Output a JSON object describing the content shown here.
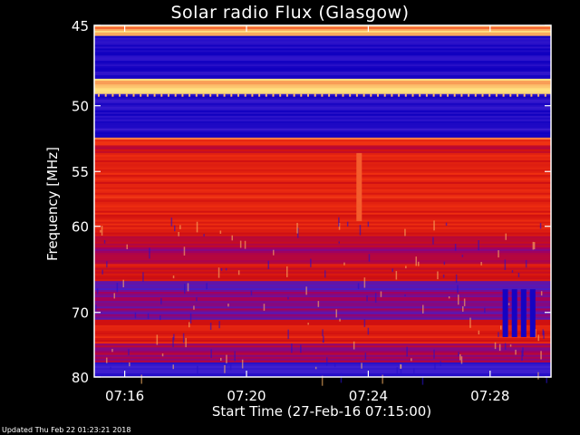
{
  "chart_data": {
    "type": "heatmap",
    "title": "Solar radio Flux (Glasgow)",
    "ylabel": "Frequency [MHz]",
    "xlabel": "Start Time (27-Feb-16 07:15:00)",
    "y_ticks": [
      45,
      50,
      55,
      60,
      70,
      80
    ],
    "ylim": [
      45,
      80
    ],
    "x_ticks": [
      "07:16",
      "07:20",
      "07:24",
      "07:28"
    ],
    "x_tick_minutes": [
      16,
      20,
      24,
      28
    ],
    "xlim_minutes": [
      15,
      30
    ],
    "colormap": [
      "#1000c0",
      "#4020d0",
      "#a00060",
      "#d01010",
      "#f03010",
      "#ffe080"
    ],
    "bands": [
      {
        "from": 45,
        "to": 45.6,
        "level": 0.9
      },
      {
        "from": 45.6,
        "to": 48.2,
        "level": 0.05
      },
      {
        "from": 48.2,
        "to": 49.2,
        "level": 1.0
      },
      {
        "from": 49.2,
        "to": 52.3,
        "level": 0.08
      },
      {
        "from": 52.3,
        "to": 52.9,
        "level": 0.85
      },
      {
        "from": 52.9,
        "to": 53.5,
        "level": 0.55
      },
      {
        "from": 53.5,
        "to": 61.0,
        "level": 0.7
      },
      {
        "from": 61.0,
        "to": 64.0,
        "level": 0.45
      },
      {
        "from": 64.0,
        "to": 66.0,
        "level": 0.62
      },
      {
        "from": 66.0,
        "to": 68.0,
        "level": 0.3
      },
      {
        "from": 68.0,
        "to": 71.0,
        "level": 0.35
      },
      {
        "from": 71.0,
        "to": 74.5,
        "level": 0.68
      },
      {
        "from": 74.5,
        "to": 77.5,
        "level": 0.4
      },
      {
        "from": 77.5,
        "to": 80,
        "level": 0.15
      }
    ],
    "bursts": [
      {
        "minute": 23.7,
        "from": 53.5,
        "to": 59.5,
        "level": 0.85
      },
      {
        "minute": 28.5,
        "from": 67.0,
        "to": 73.5,
        "level": 0.02
      },
      {
        "minute": 28.8,
        "from": 67.0,
        "to": 73.5,
        "level": 0.02
      },
      {
        "minute": 29.1,
        "from": 67.0,
        "to": 73.5,
        "level": 0.02
      },
      {
        "minute": 29.4,
        "from": 67.0,
        "to": 73.5,
        "level": 0.02
      }
    ]
  },
  "updated": "Updated Thu Feb 22 01:23:21 2018"
}
